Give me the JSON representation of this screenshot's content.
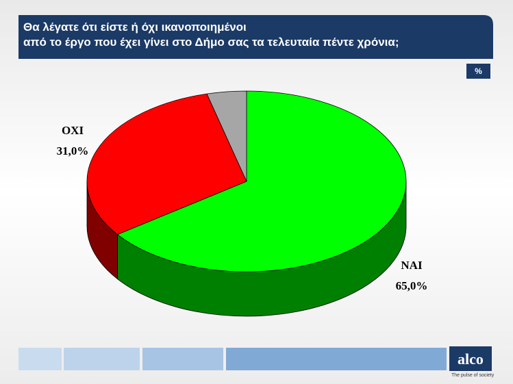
{
  "chart_data": {
    "type": "pie3d",
    "title": [
      "Θα λέγατε ότι είστε ή όχι ικανοποιημένοι",
      "από το έργο που έχει γίνει στο Δήμο σας τα τελευταία πέντε χρόνια;"
    ],
    "unit_badge": "%",
    "categories": [
      "ΝΑΙ",
      "ΟΧΙ",
      null
    ],
    "values": [
      65,
      31,
      4
    ],
    "value_labels": [
      "65,0%",
      "31,0%",
      null
    ],
    "colors": [
      "#00ff00",
      "#ff0000",
      "#a6a6a6"
    ],
    "side_colors": [
      "#008000",
      "#800000",
      "#606060"
    ]
  },
  "logo": {
    "name": "alco",
    "tagline": "The pulse of society"
  }
}
